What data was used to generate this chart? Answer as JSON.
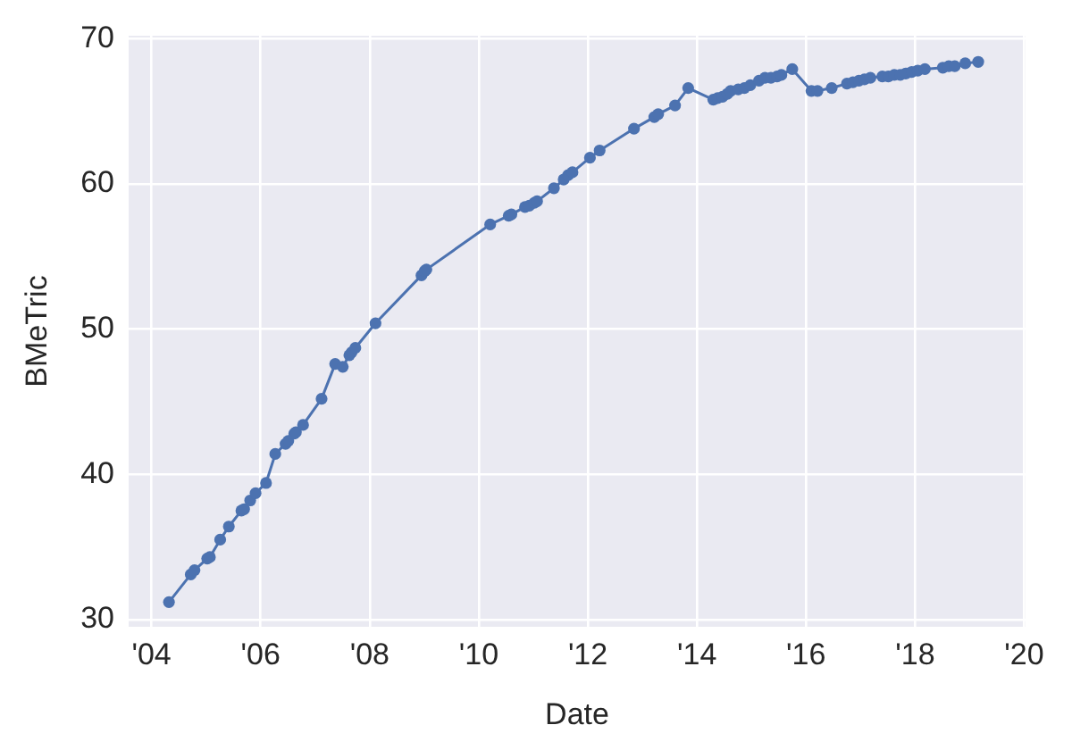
{
  "chart_data": {
    "type": "line",
    "xlabel": "Date",
    "ylabel": "BMeTric",
    "color": "#4c72b0",
    "marker": "circle",
    "line_style": "solid",
    "grid": true,
    "legend": false,
    "x": [
      "2004-04-27",
      "2004-09-20",
      "2004-10-15",
      "2005-01-08",
      "2005-01-26",
      "2005-04-05",
      "2005-06-02",
      "2005-08-25",
      "2005-09-12",
      "2005-10-23",
      "2005-11-28",
      "2006-02-06",
      "2006-04-09",
      "2006-06-17",
      "2006-07-05",
      "2006-08-14",
      "2006-08-25",
      "2006-10-12",
      "2007-02-13",
      "2007-05-15",
      "2007-07-05",
      "2007-08-18",
      "2007-09-02",
      "2007-09-27",
      "2008-02-09",
      "2008-12-13",
      "2009-01-04",
      "2009-01-15",
      "2010-03-18",
      "2010-07-20",
      "2010-08-07",
      "2010-11-06",
      "2010-12-05",
      "2011-01-08",
      "2011-01-26",
      "2011-05-19",
      "2011-07-23",
      "2011-08-22",
      "2011-09-20",
      "2012-01-15",
      "2012-03-20",
      "2012-11-05",
      "2013-03-21",
      "2013-04-16",
      "2013-08-07",
      "2013-11-03",
      "2014-04-20",
      "2014-05-19",
      "2014-06-21",
      "2014-07-23",
      "2014-08-14",
      "2014-10-04",
      "2014-11-14",
      "2014-12-24",
      "2015-02-20",
      "2015-04-01",
      "2015-05-11",
      "2015-06-21",
      "2015-07-20",
      "2015-10-01",
      "2016-02-06",
      "2016-03-18",
      "2016-06-21",
      "2016-10-01",
      "2016-11-10",
      "2016-12-20",
      "2017-01-26",
      "2017-03-07",
      "2017-05-26",
      "2017-07-05",
      "2017-08-14",
      "2017-09-23",
      "2017-10-30",
      "2017-12-09",
      "2018-01-18",
      "2018-03-07",
      "2018-07-05",
      "2018-08-14",
      "2018-09-23",
      "2018-12-02",
      "2019-02-27"
    ],
    "values": [
      31.2,
      33.1,
      33.4,
      34.2,
      34.3,
      35.5,
      36.4,
      37.5,
      37.6,
      38.2,
      38.7,
      39.4,
      41.4,
      42.1,
      42.3,
      42.8,
      42.9,
      43.4,
      45.2,
      47.6,
      47.4,
      48.2,
      48.4,
      48.7,
      50.4,
      53.7,
      54.0,
      54.1,
      57.2,
      57.8,
      57.9,
      58.4,
      58.5,
      58.7,
      58.8,
      59.7,
      60.3,
      60.6,
      60.8,
      61.8,
      62.3,
      63.8,
      64.6,
      64.8,
      65.4,
      66.6,
      65.8,
      65.9,
      66.0,
      66.2,
      66.4,
      66.5,
      66.6,
      66.8,
      67.1,
      67.3,
      67.3,
      67.4,
      67.5,
      67.9,
      66.4,
      66.4,
      66.6,
      66.9,
      67.0,
      67.1,
      67.2,
      67.3,
      67.4,
      67.4,
      67.5,
      67.5,
      67.6,
      67.7,
      67.8,
      67.9,
      68.0,
      68.1,
      68.1,
      68.3,
      68.4
    ],
    "xlim": [
      "2003-08-01",
      "2020-01-10"
    ],
    "xticks": [
      {
        "value": "2004-01-01",
        "label": "'04"
      },
      {
        "value": "2006-01-01",
        "label": "'06"
      },
      {
        "value": "2008-01-01",
        "label": "'08"
      },
      {
        "value": "2010-01-01",
        "label": "'10"
      },
      {
        "value": "2012-01-01",
        "label": "'12"
      },
      {
        "value": "2014-01-01",
        "label": "'14"
      },
      {
        "value": "2016-01-01",
        "label": "'16"
      },
      {
        "value": "2018-01-01",
        "label": "'18"
      },
      {
        "value": "2020-01-01",
        "label": "'20"
      }
    ],
    "ylim": [
      29.5,
      70.2
    ],
    "yticks": [
      30,
      40,
      50,
      60,
      70
    ]
  }
}
